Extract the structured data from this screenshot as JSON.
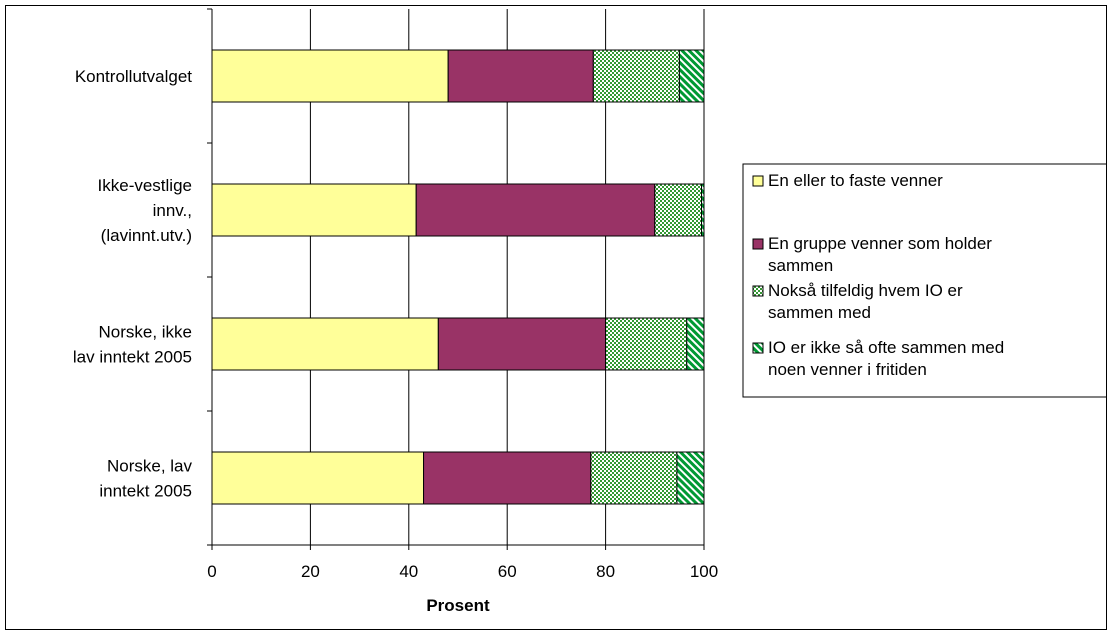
{
  "chart_data": {
    "type": "bar",
    "orientation": "horizontal",
    "stacked": true,
    "categories": [
      [
        "Kontrollutvalget"
      ],
      [
        "Ikke-vestlige",
        "innv.,",
        "(lavinnt.utv.)"
      ],
      [
        "Norske, ikke",
        "lav inntekt 2005"
      ],
      [
        "Norske, lav",
        "inntekt 2005"
      ]
    ],
    "series": [
      {
        "name": [
          "En eller to faste venner"
        ],
        "values": [
          48,
          41.5,
          46,
          43
        ],
        "color": "#FFFF99",
        "pattern": "solid"
      },
      {
        "name": [
          "En gruppe venner som holder",
          "sammen"
        ],
        "values": [
          29.5,
          48.5,
          34,
          34
        ],
        "color": "#993366",
        "pattern": "solid"
      },
      {
        "name": [
          "Nokså tilfeldig hvem IO er",
          "sammen med"
        ],
        "values": [
          17.5,
          9.5,
          16.5,
          17.5
        ],
        "color": "#99CC99",
        "pattern": "checker"
      },
      {
        "name": [
          "IO er ikke så ofte sammen med",
          "noen venner i fritiden"
        ],
        "values": [
          5,
          0.5,
          3.5,
          5.5
        ],
        "color": "#339966",
        "pattern": "diagonal"
      }
    ],
    "xlabel": "Prosent",
    "xlim": [
      0,
      100
    ],
    "xticks": [
      0,
      20,
      40,
      60,
      80,
      100
    ],
    "grid": "vertical",
    "legend_position": "right"
  }
}
